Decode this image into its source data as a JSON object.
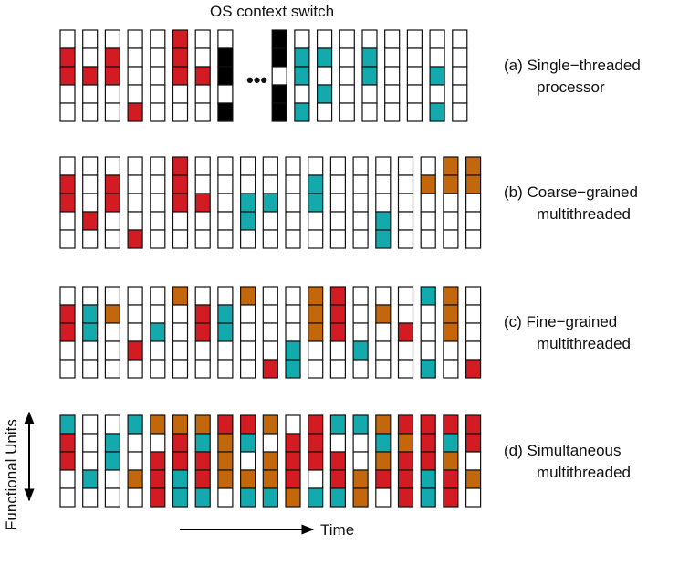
{
  "title": "OS context switch",
  "ellipsis": "•••",
  "axis": {
    "y_label": "Functional Units",
    "x_label": "Time"
  },
  "colors": {
    "r": "#d21b23",
    "c": "#13a9ad",
    "o": "#c3670c",
    "k": "#000000",
    "empty": "#ffffff",
    "border": "#111111"
  },
  "rows": [
    {
      "id": "a",
      "label_lines": [
        "(a) Single−threaded",
        "processor"
      ],
      "columns": [
        "_rr_____",
        "__r__r_r",
        "_rr_____",
        "____r___",
        "________",
        "rrr_____",
        "__r_____",
        "_kk_k___",
        "gap",
        "kk_kk___",
        "_cc_c___",
        "_c_c____",
        "________",
        "_cc_____",
        "________",
        "________",
        "__c_c___",
        "________"
      ]
    },
    {
      "id": "b",
      "label_lines": [
        "(b) Coarse−grained",
        "multithreaded"
      ],
      "columns": [
        "_rr__",
        "___r_",
        "_rr__",
        "____r",
        "_____",
        "rrr__",
        "__r__",
        "_____",
        "__cc_",
        "__c__",
        "_____",
        "_cc__",
        "_____",
        "_____",
        "___cc",
        "_____",
        "_o___",
        "oo___",
        "oo___"
      ]
    },
    {
      "id": "c",
      "label_lines": [
        "(c) Fine−grained",
        "multithreaded"
      ],
      "columns": [
        "_rr__",
        "_cc__",
        "_o___",
        "___r_",
        "__c__",
        "o____",
        "_rr__",
        "_cc__",
        "o____",
        "____r",
        "___cc",
        "ooo__",
        "rrr__",
        "___c_",
        "_o___",
        "__r__",
        "c___c",
        "ooo__",
        "____r"
      ]
    },
    {
      "id": "d",
      "label_lines": [
        "(d) Simultaneous",
        "multithreaded"
      ],
      "columns": [
        "crr__",
        "___c_",
        "_cc__",
        "c__o_",
        "o_rrr",
        "orrcc",
        "ocrrc",
        "rooo_",
        "rc_oc",
        "o_ooc",
        "_rrro",
        "rrr_c",
        "c_rrc",
        "c__oo",
        "ocor_",
        "rorrr",
        "rrrcc",
        "rcorr",
        "rr_o_"
      ]
    }
  ]
}
